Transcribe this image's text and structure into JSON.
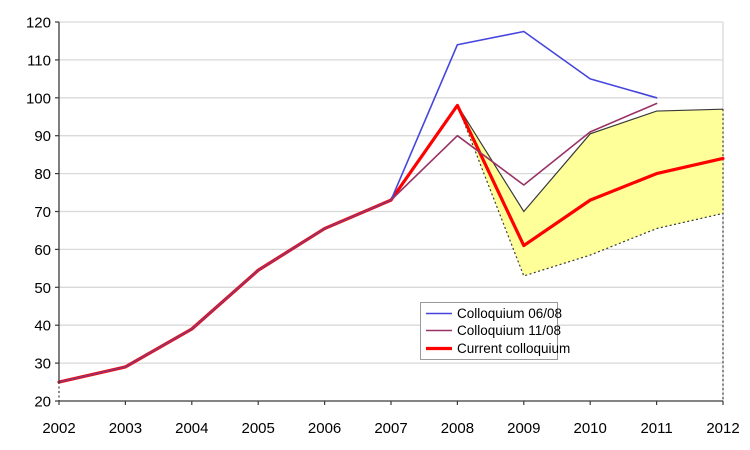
{
  "chart_data": {
    "type": "line",
    "title": "",
    "xlabel": "",
    "ylabel": "",
    "x_labels": [
      "2002",
      "2003",
      "2004",
      "2005",
      "2006",
      "2007",
      "2008",
      "2009",
      "2010",
      "2011",
      "2012"
    ],
    "x_values": [
      2002,
      2003,
      2004,
      2005,
      2006,
      2007,
      2008,
      2009,
      2010,
      2011,
      2012
    ],
    "xlim": [
      2002,
      2012
    ],
    "ylim": [
      20,
      120
    ],
    "yticks": [
      20,
      30,
      40,
      50,
      60,
      70,
      80,
      90,
      100,
      110,
      120
    ],
    "grid": true,
    "series": [
      {
        "name": "Colloquium 06/08",
        "color": "#4646DE",
        "line_width": 1.6,
        "x": [
          2002,
          2003,
          2004,
          2005,
          2006,
          2007,
          2008,
          2009,
          2010,
          2011
        ],
        "values": [
          25,
          29,
          39,
          54.5,
          65.5,
          73,
          114,
          117.5,
          105,
          100
        ]
      },
      {
        "name": "Colloquium 11/08",
        "color": "#993366",
        "line_width": 1.6,
        "x": [
          2002,
          2003,
          2004,
          2005,
          2006,
          2007,
          2008,
          2009,
          2010,
          2011
        ],
        "values": [
          25,
          29,
          39,
          54.5,
          65.5,
          73,
          90,
          77,
          91,
          98.5
        ]
      },
      {
        "name": "Current colloquium",
        "color": "#FF0000",
        "line_width": 3.2,
        "x": [
          2002,
          2003,
          2004,
          2005,
          2006,
          2007,
          2008,
          2009,
          2010,
          2011,
          2012
        ],
        "values": [
          25,
          29,
          39,
          54.5,
          65.5,
          73,
          98,
          61,
          73,
          80,
          84
        ]
      }
    ],
    "band": {
      "name": "forecast-uncertainty-band",
      "x": [
        2008,
        2009,
        2010,
        2011,
        2012
      ],
      "upper": [
        98,
        70,
        90.5,
        96.5,
        97
      ],
      "lower": [
        98,
        53,
        58.5,
        65.5,
        69.5
      ],
      "fill": "#FFFF99",
      "edge_color": "#3A3A3A"
    },
    "legend": {
      "position": "inside-bottom-right",
      "entries": [
        "Colloquium 06/08",
        "Colloquium 11/08",
        "Current colloquium"
      ]
    },
    "colors": {
      "background": "#FFFFFF",
      "gridline": "#D9D9D9",
      "axis": "#3A3A3A"
    }
  }
}
